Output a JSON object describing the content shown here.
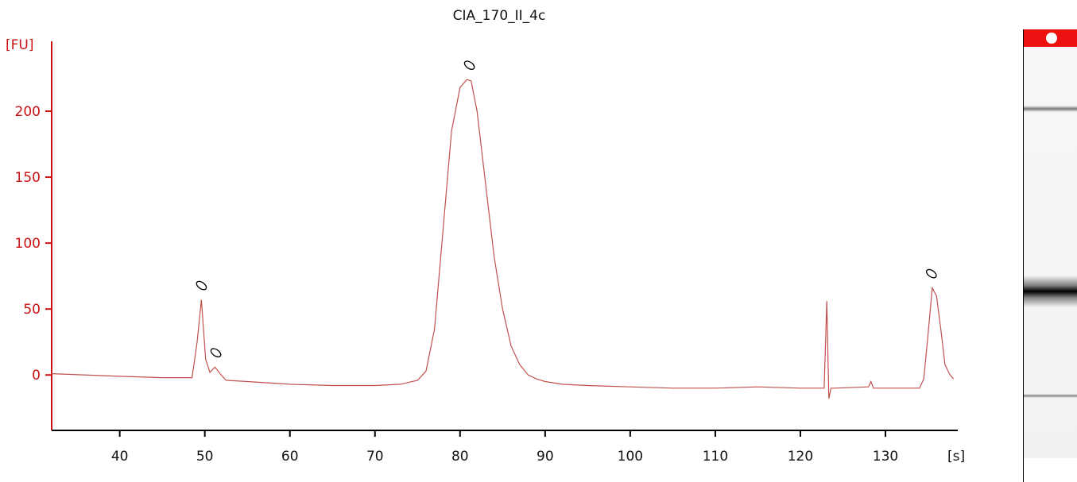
{
  "chart_data": {
    "type": "line",
    "title": "CIA_170_II_4c",
    "ylabel": "[FU]",
    "xlabel": "[s]",
    "xlim": [
      32,
      138.5
    ],
    "ylim": [
      -42,
      253
    ],
    "xticks": [
      40,
      50,
      60,
      70,
      80,
      90,
      100,
      110,
      120,
      130
    ],
    "yticks": [
      0,
      50,
      100,
      150,
      200
    ],
    "colors": {
      "axis": "#cc1111",
      "trace": "#c0504d",
      "peak_marker": "#000000"
    },
    "series": [
      {
        "x": [
          32,
          40,
          45,
          48.5,
          49.1,
          49.6,
          50.1,
          50.6,
          51.2,
          51.8,
          52.5,
          55,
          60,
          65,
          70,
          73,
          75,
          76,
          77,
          78,
          79,
          80,
          80.8,
          81.3,
          82,
          83,
          84,
          85,
          86,
          87,
          88,
          89,
          90,
          92,
          95,
          100,
          105,
          110,
          115,
          120,
          122.8,
          123.1,
          123.35,
          123.6,
          124,
          128,
          128.3,
          128.6,
          134,
          134.5,
          135,
          135.5,
          136,
          136.5,
          137,
          137.5,
          138
        ],
        "y": [
          1,
          -1,
          -2,
          -2,
          25,
          57,
          12,
          2,
          6,
          1,
          -4,
          -5,
          -7,
          -8,
          -8,
          -7,
          -4,
          3,
          35,
          110,
          185,
          218,
          224,
          223,
          200,
          145,
          90,
          50,
          22,
          8,
          0,
          -3,
          -5,
          -7,
          -8,
          -9,
          -10,
          -10,
          -9,
          -10,
          -10,
          56,
          -18,
          -10,
          -10,
          -9,
          -5,
          -10,
          -10,
          -3,
          30,
          66,
          60,
          35,
          8,
          1,
          -3
        ]
      }
    ],
    "peak_markers": [
      {
        "x": 49.6,
        "y": 57
      },
      {
        "x": 51.3,
        "y": 6
      },
      {
        "x": 81.1,
        "y": 224
      },
      {
        "x": 135.4,
        "y": 66
      }
    ]
  }
}
